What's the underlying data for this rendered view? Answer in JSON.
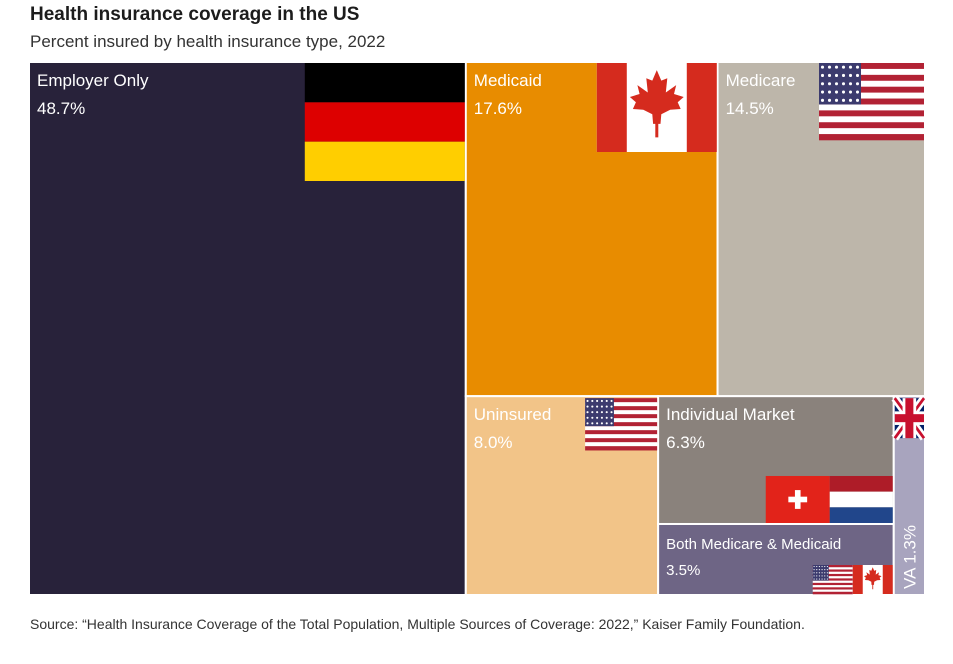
{
  "header": {
    "title": "Health insurance coverage in the US",
    "subtitle": "Percent insured by health insurance type, 2022"
  },
  "source": {
    "text": "Source: “Health Insurance Coverage of the Total Population, Multiple Sources of Coverage: 2022,” Kaiser Family Foundation."
  },
  "chart_data": {
    "type": "treemap",
    "title": "Health insurance coverage in the US",
    "subtitle": "Percent insured by health insurance type, 2022",
    "unit": "%",
    "items": [
      {
        "name": "Employer Only",
        "value": 48.7,
        "value_label": "48.7%",
        "color": "#28223a",
        "text_color": "#ffffff",
        "flags": [
          "germany-flag"
        ]
      },
      {
        "name": "Medicaid",
        "value": 17.6,
        "value_label": "17.6%",
        "color": "#e88c00",
        "text_color": "#ffffff",
        "flags": [
          "canada-flag"
        ]
      },
      {
        "name": "Medicare",
        "value": 14.5,
        "value_label": "14.5%",
        "color": "#bdb6aa",
        "text_color": "#ffffff",
        "flags": [
          "usa-flag"
        ]
      },
      {
        "name": "Uninsured",
        "value": 8.0,
        "value_label": "8.0%",
        "color": "#f2c488",
        "text_color": "#ffffff",
        "flags": [
          "usa-flag"
        ]
      },
      {
        "name": "Individual Market",
        "value": 6.3,
        "value_label": "6.3%",
        "color": "#8a827c",
        "text_color": "#ffffff",
        "flags": [
          "switzerland-flag",
          "netherlands-flag"
        ]
      },
      {
        "name": "Both Medicare & Medicaid",
        "value": 3.5,
        "value_label": "3.5%",
        "color": "#6e6585",
        "text_color": "#ffffff",
        "flags": [
          "usa-flag",
          "canada-flag"
        ]
      },
      {
        "name": "VA",
        "value": 1.3,
        "value_label": "1.3%",
        "color": "#a8a4be",
        "text_color": "#ffffff",
        "flags": [
          "uk-flag"
        ]
      }
    ]
  }
}
